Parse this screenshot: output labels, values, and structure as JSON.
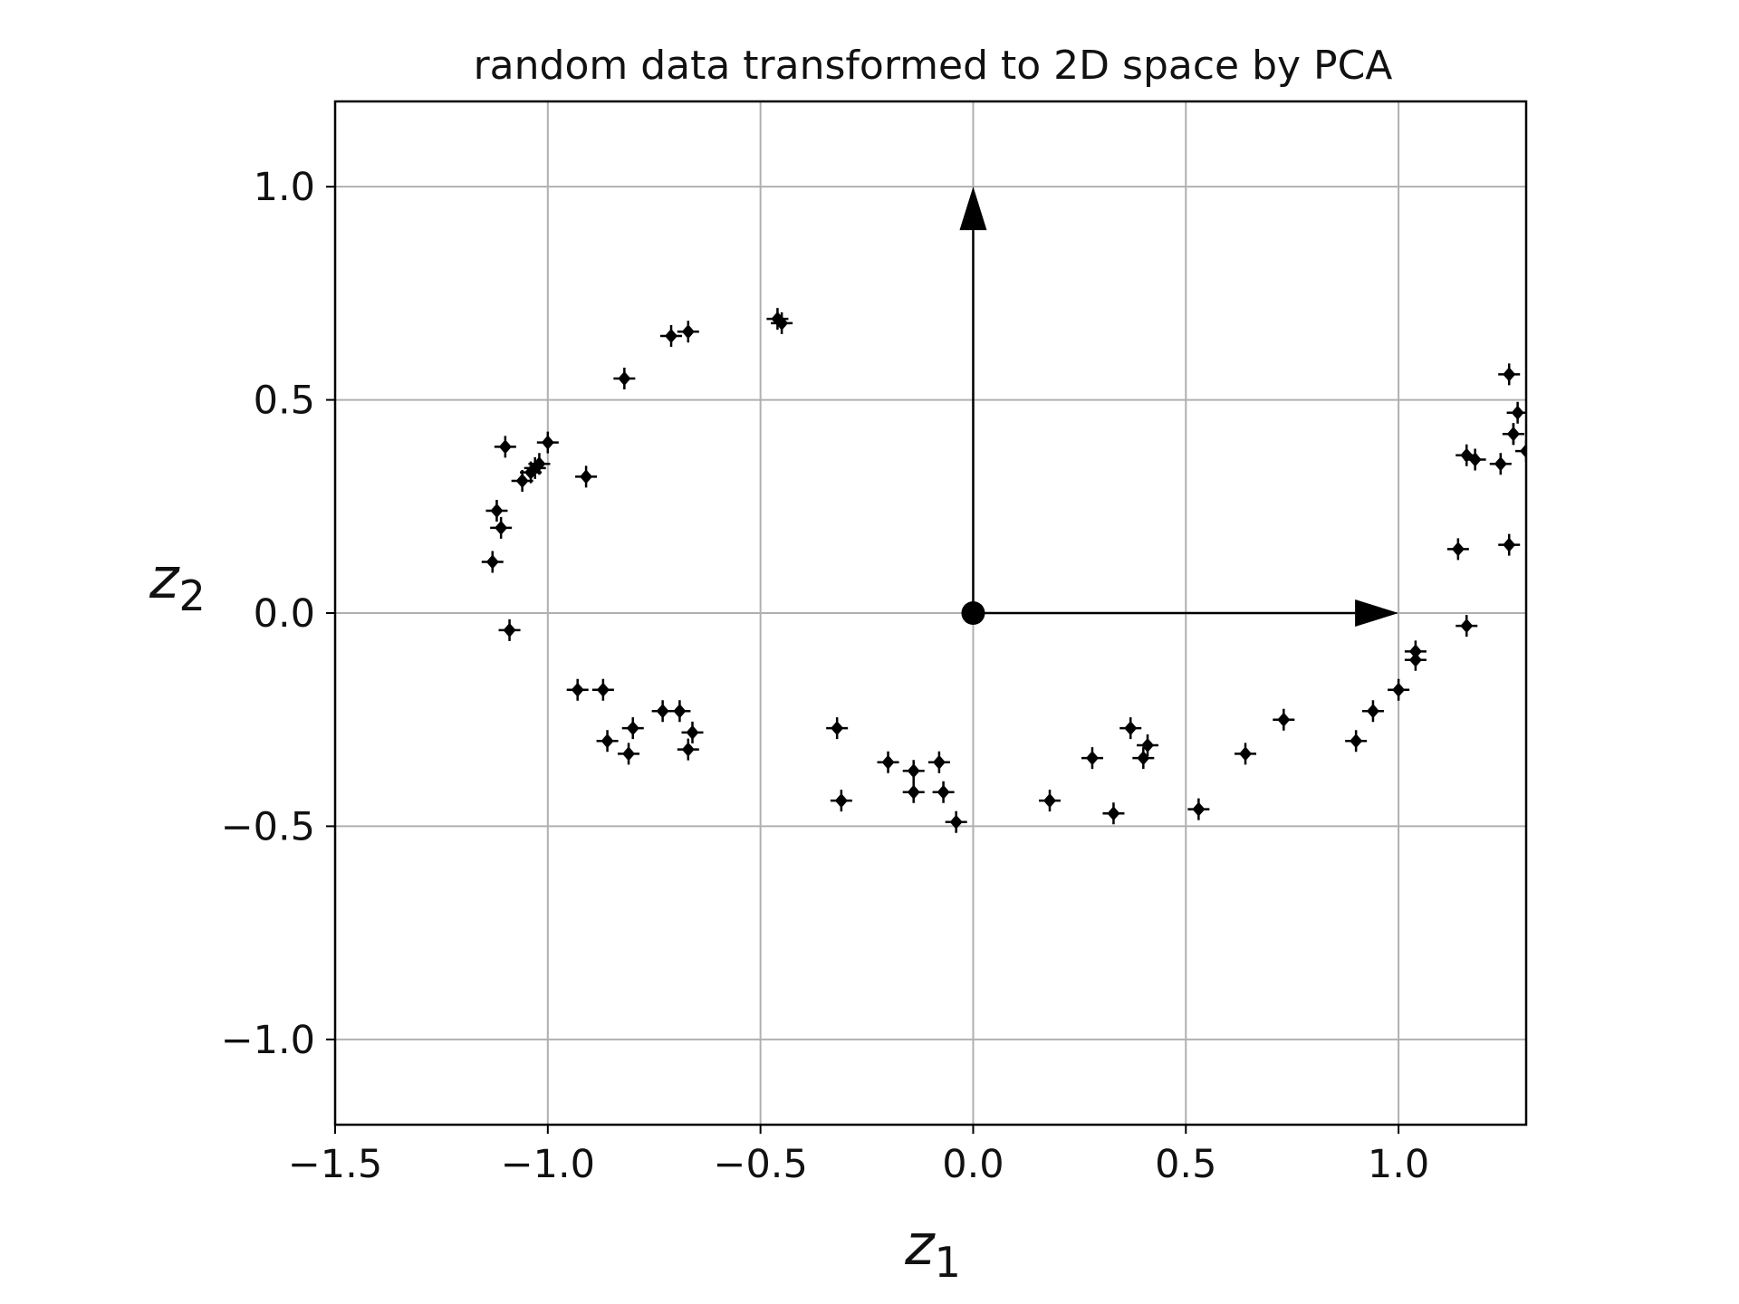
{
  "chart_data": {
    "type": "scatter",
    "title": "random data transformed to 2D space by PCA",
    "xlabel": {
      "base": "z",
      "sub": "1"
    },
    "ylabel": {
      "base": "z",
      "sub": "2"
    },
    "xlim": [
      -1.5,
      1.3
    ],
    "ylim": [
      -1.2,
      1.2
    ],
    "xticks": [
      -1.5,
      -1.0,
      -0.5,
      0.0,
      0.5,
      1.0
    ],
    "xtick_labels": [
      "−1.5",
      "−1.0",
      "−0.5",
      "0.0",
      "0.5",
      "1.0"
    ],
    "yticks": [
      -1.0,
      -0.5,
      0.0,
      0.5,
      1.0
    ],
    "ytick_labels": [
      "−1.0",
      "−0.5",
      "0.0",
      "0.5",
      "1.0"
    ],
    "grid": true,
    "marker": "diamond with cross",
    "color": "#000000",
    "origin": [
      0.0,
      0.0
    ],
    "vectors": [
      {
        "from": [
          0.0,
          0.0
        ],
        "to": [
          0.0,
          1.0
        ]
      },
      {
        "from": [
          0.0,
          0.0
        ],
        "to": [
          1.0,
          0.0
        ]
      }
    ],
    "points": {
      "x": [
        -0.46,
        -0.45,
        -0.71,
        -0.67,
        -0.82,
        -1.1,
        -1.0,
        -1.03,
        -1.02,
        -1.04,
        -1.06,
        -0.91,
        -1.12,
        -1.11,
        -1.13,
        -1.09,
        -0.93,
        -0.87,
        -0.86,
        -0.8,
        -0.81,
        -0.73,
        -0.69,
        -0.66,
        -0.67,
        -0.32,
        -0.31,
        -0.2,
        -0.14,
        -0.14,
        -0.08,
        -0.07,
        -0.04,
        0.18,
        0.28,
        0.33,
        0.37,
        0.4,
        0.41,
        0.53,
        0.64,
        0.73,
        0.9,
        0.94,
        1.0,
        1.04,
        1.04,
        1.14,
        1.16,
        1.16,
        1.18,
        1.24,
        1.26,
        1.27,
        1.28,
        1.26,
        1.27,
        1.3
      ],
      "y": [
        0.69,
        0.68,
        0.65,
        0.66,
        0.55,
        0.39,
        0.4,
        0.34,
        0.35,
        0.33,
        0.31,
        0.32,
        0.24,
        0.2,
        0.12,
        -0.04,
        -0.18,
        -0.18,
        -0.3,
        -0.27,
        -0.33,
        -0.23,
        -0.23,
        -0.28,
        -0.32,
        -0.27,
        -0.44,
        -0.35,
        -0.37,
        -0.42,
        -0.35,
        -0.42,
        -0.49,
        -0.44,
        -0.34,
        -0.47,
        -0.27,
        -0.34,
        -0.31,
        -0.46,
        -0.33,
        -0.25,
        -0.3,
        -0.23,
        -0.18,
        -0.09,
        -0.11,
        0.15,
        -0.03,
        0.37,
        0.36,
        0.35,
        0.56,
        0.42,
        0.47,
        0.16,
        0.42,
        0.38
      ]
    }
  }
}
